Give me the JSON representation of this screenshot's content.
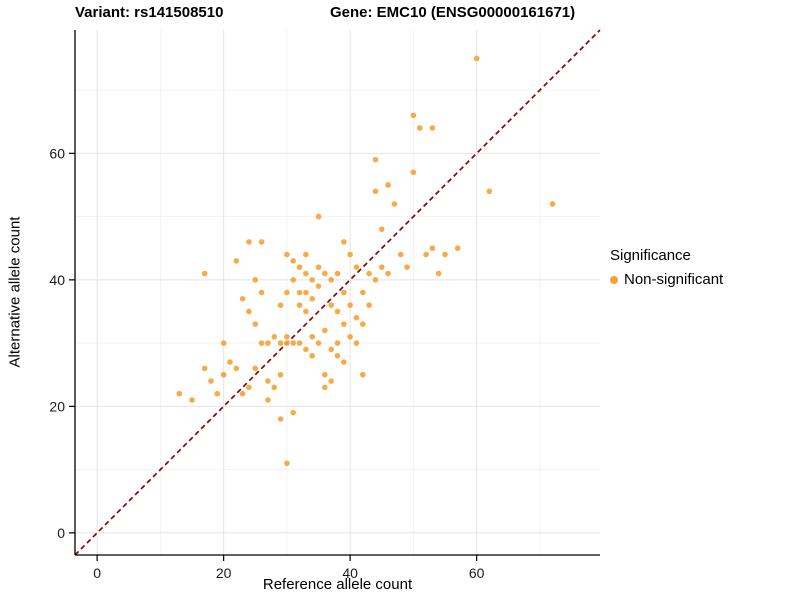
{
  "chart_data": {
    "type": "scatter",
    "title_left": "Variant: rs141508510",
    "title_right": "Gene: EMC10 (ENSG00000161671)",
    "xlabel": "Reference allele count",
    "ylabel": "Alternative allele count",
    "xlim": [
      -3.5,
      79.5
    ],
    "ylim": [
      -3.5,
      79.5
    ],
    "x_ticks": [
      0,
      20,
      40,
      60
    ],
    "y_ticks": [
      0,
      20,
      40,
      60
    ],
    "minor_ticks": [
      10,
      30,
      50,
      70
    ],
    "grid": true,
    "point_color": "#F5A135",
    "point_opacity": 0.9,
    "identity_line": {
      "style": "dashed",
      "color": "#8B0000",
      "equation": "y = x"
    },
    "legend": {
      "title": "Significance",
      "position": "right",
      "items": [
        {
          "label": "Non-significant",
          "color": "#F5A135"
        }
      ]
    },
    "points": [
      [
        13,
        22
      ],
      [
        15,
        21
      ],
      [
        17,
        41
      ],
      [
        17,
        26
      ],
      [
        18,
        24
      ],
      [
        19,
        22
      ],
      [
        20,
        25
      ],
      [
        20,
        30
      ],
      [
        21,
        27
      ],
      [
        22,
        43
      ],
      [
        22,
        26
      ],
      [
        23,
        37
      ],
      [
        23,
        22
      ],
      [
        24,
        46
      ],
      [
        24,
        35
      ],
      [
        24,
        23
      ],
      [
        25,
        40
      ],
      [
        25,
        33
      ],
      [
        25,
        26
      ],
      [
        26,
        46
      ],
      [
        26,
        38
      ],
      [
        26,
        30
      ],
      [
        27,
        30
      ],
      [
        27,
        24
      ],
      [
        27,
        21
      ],
      [
        28,
        31
      ],
      [
        28,
        23
      ],
      [
        29,
        36
      ],
      [
        29,
        30
      ],
      [
        29,
        25
      ],
      [
        29,
        18
      ],
      [
        30,
        44
      ],
      [
        30,
        38
      ],
      [
        30,
        31
      ],
      [
        30,
        30
      ],
      [
        30,
        11
      ],
      [
        31,
        43
      ],
      [
        31,
        40
      ],
      [
        31,
        30
      ],
      [
        31,
        19
      ],
      [
        32,
        42
      ],
      [
        32,
        38
      ],
      [
        32,
        36
      ],
      [
        32,
        30
      ],
      [
        33,
        44
      ],
      [
        33,
        41
      ],
      [
        33,
        38
      ],
      [
        33,
        35
      ],
      [
        33,
        29
      ],
      [
        34,
        40
      ],
      [
        34,
        37
      ],
      [
        34,
        31
      ],
      [
        34,
        28
      ],
      [
        35,
        50
      ],
      [
        35,
        42
      ],
      [
        35,
        39
      ],
      [
        35,
        30
      ],
      [
        36,
        41
      ],
      [
        36,
        32
      ],
      [
        36,
        25
      ],
      [
        36,
        23
      ],
      [
        37,
        40
      ],
      [
        37,
        36
      ],
      [
        37,
        29
      ],
      [
        37,
        24
      ],
      [
        38,
        41
      ],
      [
        38,
        35
      ],
      [
        38,
        30
      ],
      [
        38,
        28
      ],
      [
        39,
        46
      ],
      [
        39,
        38
      ],
      [
        39,
        33
      ],
      [
        39,
        27
      ],
      [
        40,
        44
      ],
      [
        40,
        36
      ],
      [
        40,
        31
      ],
      [
        41,
        42
      ],
      [
        41,
        34
      ],
      [
        41,
        30
      ],
      [
        42,
        38
      ],
      [
        42,
        33
      ],
      [
        42,
        25
      ],
      [
        43,
        41
      ],
      [
        43,
        36
      ],
      [
        44,
        59
      ],
      [
        44,
        54
      ],
      [
        44,
        40
      ],
      [
        45,
        48
      ],
      [
        45,
        42
      ],
      [
        46,
        55
      ],
      [
        46,
        41
      ],
      [
        47,
        52
      ],
      [
        48,
        44
      ],
      [
        49,
        42
      ],
      [
        50,
        66
      ],
      [
        50,
        57
      ],
      [
        51,
        64
      ],
      [
        52,
        44
      ],
      [
        53,
        64
      ],
      [
        53,
        45
      ],
      [
        54,
        41
      ],
      [
        55,
        44
      ],
      [
        57,
        45
      ],
      [
        60,
        75
      ],
      [
        62,
        54
      ],
      [
        72,
        52
      ]
    ]
  }
}
